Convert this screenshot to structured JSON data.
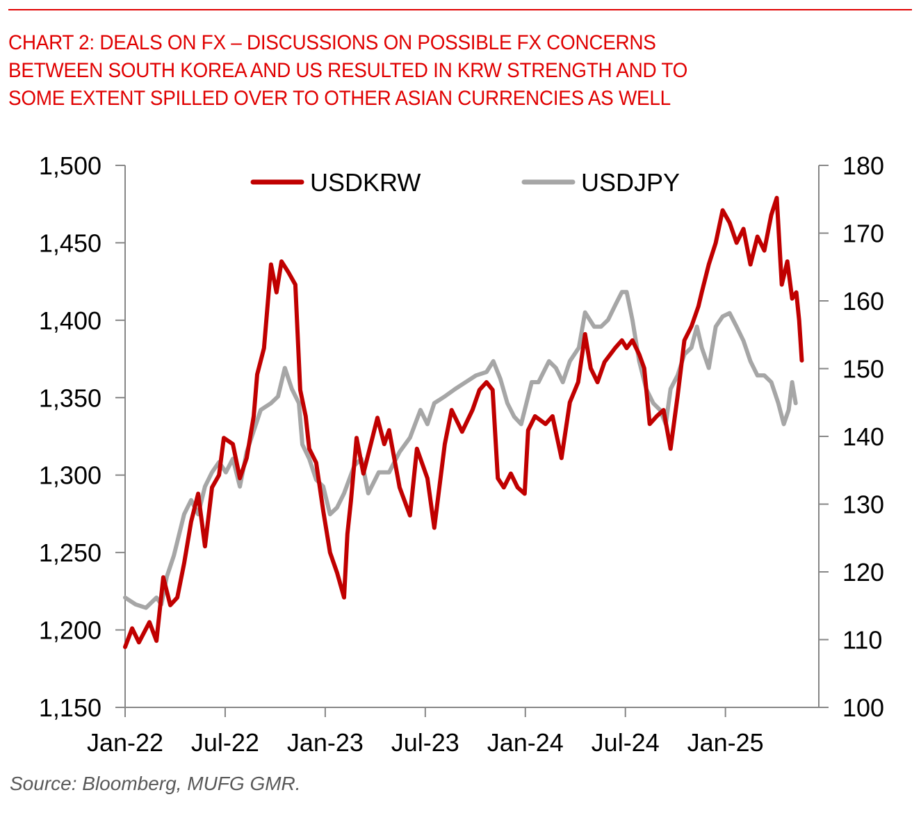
{
  "header": {
    "title": "CHART 2: DEALS ON FX – DISCUSSIONS ON POSSIBLE FX CONCERNS\nBETWEEN SOUTH KOREA AND US RESULTED IN KRW STRENGTH AND TO\nSOME EXTENT SPILLED OVER TO OTHER ASIAN CURRENCIES AS WELL",
    "accent_color": "#e00000"
  },
  "footer": {
    "source": "Source: Bloomberg, MUFG GMR."
  },
  "chart_data": {
    "type": "line",
    "title": "CHART 2: DEALS ON FX – DISCUSSIONS ON POSSIBLE FX CONCERNS BETWEEN SOUTH KOREA AND US RESULTED IN KRW STRENGTH AND TO SOME EXTENT SPILLED OVER TO OTHER ASIAN CURRENCIES AS WELL",
    "x_unit": "months since Jan-2022",
    "x_ticks": [
      {
        "value": 0,
        "label": "Jan-22"
      },
      {
        "value": 6,
        "label": "Jul-22"
      },
      {
        "value": 12,
        "label": "Jan-23"
      },
      {
        "value": 18,
        "label": "Jul-23"
      },
      {
        "value": 24,
        "label": "Jan-24"
      },
      {
        "value": 30,
        "label": "Jul-24"
      },
      {
        "value": 36,
        "label": "Jan-25"
      }
    ],
    "xlim": [
      0,
      41.6
    ],
    "y_left": {
      "lim": [
        1150,
        1500
      ],
      "ticks": [
        1150,
        1200,
        1250,
        1300,
        1350,
        1400,
        1450,
        1500
      ],
      "tick_labels": [
        "1,150",
        "1,200",
        "1,250",
        "1,300",
        "1,350",
        "1,400",
        "1,450",
        "1,500"
      ]
    },
    "y_right": {
      "lim": [
        100,
        180
      ],
      "ticks": [
        100,
        110,
        120,
        130,
        140,
        150,
        160,
        170,
        180
      ],
      "tick_labels": [
        "100",
        "110",
        "120",
        "130",
        "140",
        "150",
        "160",
        "170",
        "180"
      ]
    },
    "legend": {
      "placement": "top-center"
    },
    "grid": false,
    "series": [
      {
        "name": "USDKRW",
        "axis": "left",
        "color": "#c00000",
        "x": [
          0,
          0.42,
          0.83,
          1.46,
          1.88,
          2.29,
          2.71,
          3.13,
          3.54,
          3.96,
          4.38,
          4.79,
          5.21,
          5.63,
          5.92,
          6.46,
          6.88,
          7.29,
          7.71,
          7.92,
          8.33,
          8.75,
          9.08,
          9.38,
          9.79,
          10.21,
          10.5,
          10.83,
          11.04,
          11.46,
          11.88,
          12.29,
          12.71,
          13.13,
          13.33,
          13.54,
          13.88,
          14.29,
          14.71,
          15.13,
          15.54,
          15.83,
          16.46,
          17.08,
          17.5,
          18.13,
          18.54,
          19.17,
          19.58,
          20.21,
          20.83,
          21.25,
          21.67,
          22.04,
          22.35,
          22.71,
          23.13,
          23.54,
          23.96,
          24.17,
          24.58,
          25.21,
          25.63,
          26.17,
          26.67,
          27.17,
          27.58,
          27.92,
          28.33,
          28.75,
          29.38,
          29.79,
          30.08,
          30.42,
          30.83,
          31.13,
          31.46,
          31.88,
          32.29,
          32.71,
          33.13,
          33.54,
          33.96,
          34.38,
          34.58,
          35,
          35.42,
          35.83,
          36.25,
          36.67,
          37.08,
          37.5,
          37.92,
          38.33,
          38.75,
          39.08,
          39.38,
          39.71,
          40,
          40.25,
          40.42,
          40.58
        ],
        "values": [
          1189,
          1201,
          1192,
          1205,
          1193,
          1234,
          1216,
          1221,
          1243,
          1270,
          1288,
          1254,
          1292,
          1300,
          1324,
          1320,
          1298,
          1311,
          1338,
          1365,
          1382,
          1436,
          1418,
          1438,
          1431,
          1423,
          1355,
          1338,
          1317,
          1308,
          1277,
          1250,
          1237,
          1221,
          1262,
          1283,
          1324,
          1301,
          1319,
          1337,
          1320,
          1329,
          1292,
          1274,
          1317,
          1298,
          1266,
          1320,
          1342,
          1328,
          1342,
          1355,
          1360,
          1355,
          1298,
          1292,
          1301,
          1292,
          1288,
          1329,
          1338,
          1333,
          1338,
          1311,
          1347,
          1360,
          1391,
          1369,
          1360,
          1373,
          1382,
          1387,
          1382,
          1387,
          1378,
          1369,
          1333,
          1338,
          1342,
          1317,
          1351,
          1387,
          1396,
          1409,
          1418,
          1436,
          1450,
          1471,
          1463,
          1450,
          1459,
          1436,
          1454,
          1445,
          1468,
          1479,
          1423,
          1438,
          1414,
          1418,
          1400,
          1374
        ]
      },
      {
        "name": "USDJPY",
        "axis": "right",
        "color": "#a6a6a6",
        "x": [
          0,
          0.63,
          1.25,
          1.88,
          2.17,
          2.5,
          2.92,
          3.54,
          3.96,
          4.38,
          4.79,
          5.21,
          5.63,
          6.04,
          6.46,
          6.88,
          7.29,
          7.71,
          8.13,
          8.75,
          9.17,
          9.58,
          10,
          10.42,
          10.63,
          11.04,
          11.46,
          11.88,
          12.29,
          12.71,
          13.13,
          13.75,
          14.17,
          14.58,
          15.21,
          15.83,
          16.46,
          17.08,
          17.71,
          18.13,
          18.54,
          19.17,
          19.79,
          20.42,
          21.04,
          21.67,
          22.08,
          22.5,
          22.92,
          23.33,
          23.75,
          24.38,
          24.79,
          25.42,
          25.83,
          26.25,
          26.67,
          27.21,
          27.58,
          28.13,
          28.54,
          28.96,
          29.38,
          29.79,
          30.08,
          30.42,
          30.83,
          31.25,
          31.67,
          32.08,
          32.42,
          32.71,
          33.13,
          33.54,
          33.96,
          34.29,
          34.58,
          35,
          35.42,
          35.83,
          36.25,
          36.67,
          37.08,
          37.5,
          37.92,
          38.33,
          38.75,
          39.17,
          39.5,
          39.79,
          40,
          40.21
        ],
        "values": [
          116.2,
          115.2,
          114.7,
          116.2,
          115.2,
          119.3,
          122.4,
          128.5,
          130.6,
          128.5,
          132.6,
          134.7,
          136.2,
          134.7,
          136.7,
          132.6,
          137.7,
          140.8,
          143.9,
          144.9,
          145.9,
          150.1,
          147.0,
          144.9,
          138.8,
          136.7,
          133.6,
          132.6,
          128.5,
          129.5,
          131.6,
          135.7,
          136.7,
          131.6,
          134.7,
          134.7,
          137.7,
          139.8,
          143.9,
          141.8,
          144.9,
          145.9,
          147.0,
          148.0,
          149.0,
          149.5,
          151.1,
          148.5,
          144.9,
          142.9,
          141.8,
          148.0,
          148.0,
          151.1,
          150.1,
          148.0,
          151.1,
          153.1,
          158.3,
          156.2,
          156.2,
          157.2,
          159.3,
          161.3,
          161.3,
          157.2,
          151.1,
          147.0,
          144.9,
          143.9,
          141.8,
          147.0,
          149.0,
          152.1,
          153.1,
          156.2,
          153.1,
          150.1,
          156.2,
          157.7,
          158.2,
          156.2,
          154.1,
          151.1,
          149.0,
          149.0,
          148.0,
          144.9,
          141.8,
          143.9,
          148.0,
          144.9
        ]
      }
    ]
  }
}
